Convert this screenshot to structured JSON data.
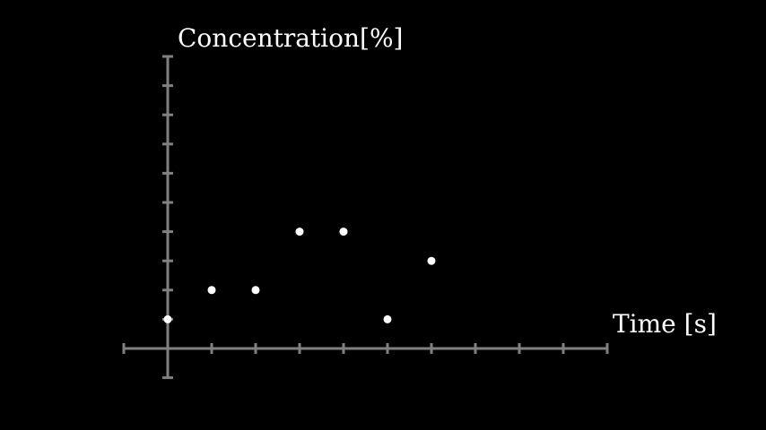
{
  "chart_data": {
    "type": "scatter",
    "title": "",
    "xlabel": "Time [s]",
    "ylabel": "Concentration[%]",
    "xlim": [
      -1,
      10
    ],
    "ylim": [
      -1,
      10
    ],
    "xticks": [
      -1,
      0,
      1,
      2,
      3,
      4,
      5,
      6,
      7,
      8,
      9,
      10
    ],
    "yticks": [
      -1,
      0,
      1,
      2,
      3,
      4,
      5,
      6,
      7,
      8,
      9,
      10
    ],
    "tick_labels_shown": false,
    "grid": false,
    "points": [
      {
        "x": 0,
        "y": 1
      },
      {
        "x": 1,
        "y": 2
      },
      {
        "x": 2,
        "y": 2
      },
      {
        "x": 3,
        "y": 4
      },
      {
        "x": 4,
        "y": 4
      },
      {
        "x": 5,
        "y": 1
      },
      {
        "x": 6,
        "y": 3
      }
    ],
    "colors": {
      "background": "#000000",
      "axis": "#808080",
      "point": "#ffffff",
      "text": "#ffffff"
    }
  }
}
